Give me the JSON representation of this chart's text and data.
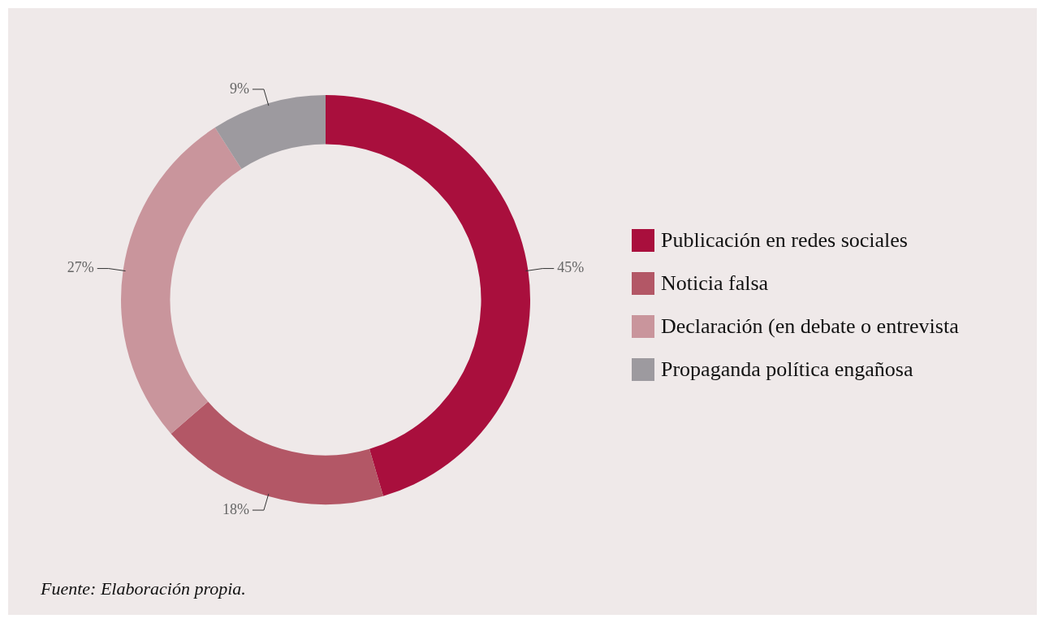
{
  "chart_data": {
    "type": "donut",
    "categories": [
      "Publicación en redes sociales",
      "Noticia falsa",
      "Declaración (en debate o entrevista",
      "Propaganda política engañosa"
    ],
    "values": [
      45,
      18,
      27,
      9
    ],
    "colors": [
      "#a90f3d",
      "#b35766",
      "#c9959c",
      "#9d9a9f"
    ],
    "value_labels": [
      "45%",
      "18%",
      "27%",
      "9%"
    ],
    "legend": "right",
    "annotations": [
      "Fuente: Elaboración propia."
    ]
  }
}
